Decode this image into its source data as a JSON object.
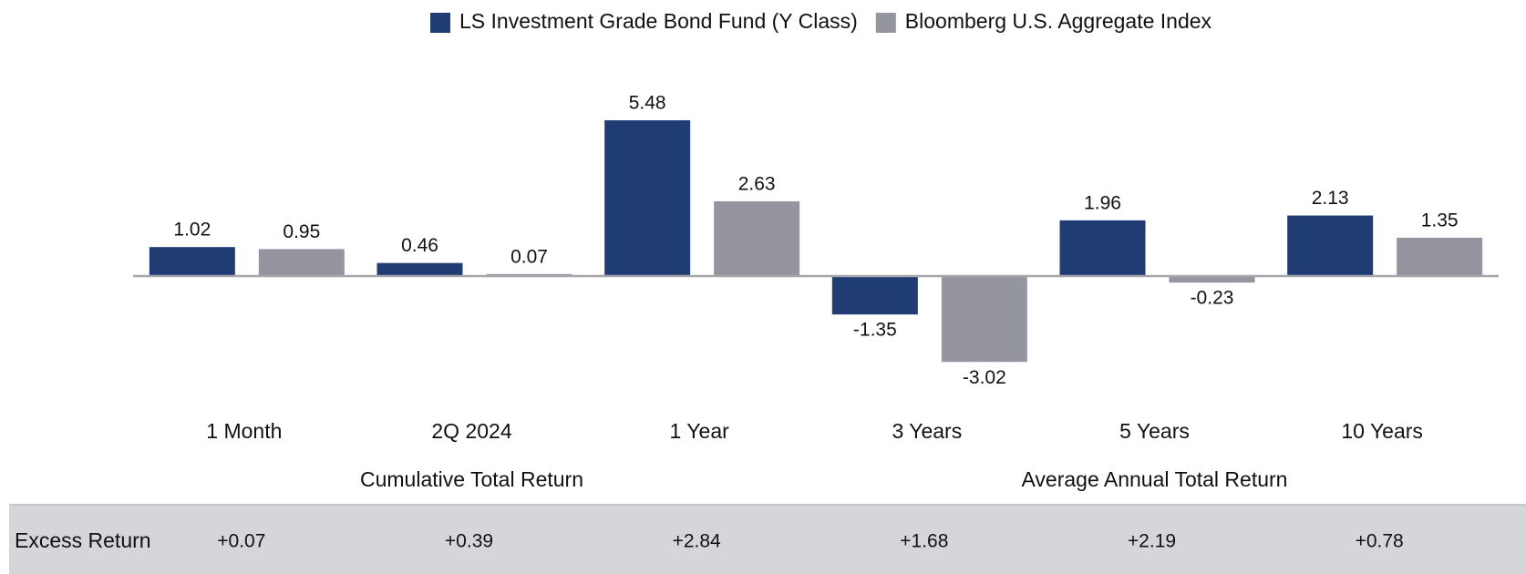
{
  "chart_data": {
    "type": "bar",
    "categories": [
      "1 Month",
      "2Q 2024",
      "1 Year",
      "3 Years",
      "5 Years",
      "10 Years"
    ],
    "series": [
      {
        "name": "LS Investment Grade Bond Fund (Y Class)",
        "color": "#1f3d73",
        "values": [
          1.02,
          0.46,
          5.48,
          -1.35,
          1.96,
          2.13
        ]
      },
      {
        "name": "Bloomberg U.S. Aggregate Index",
        "color": "#95959f",
        "values": [
          0.95,
          0.07,
          2.63,
          -3.02,
          -0.23,
          1.35
        ]
      }
    ],
    "ylim": [
      -4,
      6
    ],
    "groups": [
      {
        "label": "Cumulative Total Return",
        "span": [
          0,
          2
        ]
      },
      {
        "label": "Average Annual Total Return",
        "span": [
          3,
          5
        ]
      }
    ],
    "excess_return": {
      "label": "Excess Return",
      "values": [
        0.07,
        0.39,
        2.84,
        1.68,
        2.19,
        0.78
      ],
      "value_labels": [
        "+0.07",
        "+0.39",
        "+2.84",
        "+1.68",
        "+2.19",
        "+0.78"
      ]
    }
  }
}
